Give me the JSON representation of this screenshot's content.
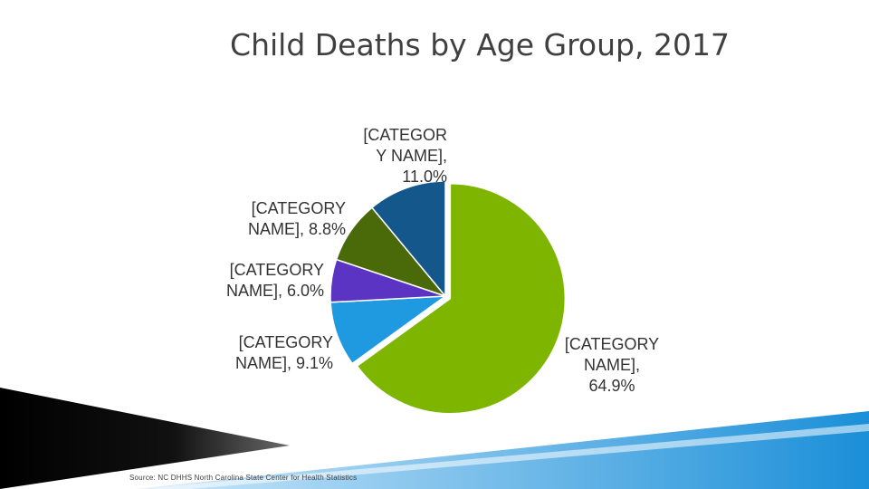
{
  "chart_data": {
    "type": "pie",
    "title": "Child Deaths by Age Group, 2017",
    "slices": [
      {
        "label": "[CATEGORY NAME], 64.9%",
        "value": 64.9,
        "color": "#7db500"
      },
      {
        "label": "[CATEGORY NAME], 9.1%",
        "value": 9.1,
        "color": "#1f9ae0"
      },
      {
        "label": "[CATEGORY NAME], 6.0%",
        "value": 6.0,
        "color": "#5b34c3"
      },
      {
        "label": "[CATEGORY NAME], 8.8%",
        "value": 8.8,
        "color": "#4a6a0a"
      },
      {
        "label": "[CATEGORY NAME], 11.0%",
        "value": 11.0,
        "color": "#14578a"
      }
    ]
  },
  "labels": {
    "s0": "[CATEGORY\nNAME],\n64.9%",
    "s1": "[CATEGORY\nNAME], 9.1%",
    "s2": "[CATEGORY\nNAME], 6.0%",
    "s3": "[CATEGORY\nNAME], 8.8%",
    "s4": "[CATEGOR\nY NAME],\n11.0%"
  },
  "source": "Source: NC DHHS North Carolina State Center for Health Statistics"
}
